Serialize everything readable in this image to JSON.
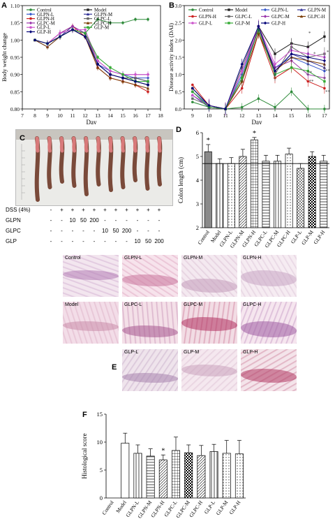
{
  "panels": {
    "A": "A",
    "B": "B",
    "C": "C",
    "D": "D",
    "E": "E",
    "F": "F"
  },
  "colors": {
    "Control": "#2e8b3a",
    "Model": "#222222",
    "GLPN-L": "#3355cc",
    "GLPN-M": "#333399",
    "GLPN-H": "#cc2222",
    "GLPC-L": "#666666",
    "GLPC-M": "#9933aa",
    "GLPC-H": "#7a3b00",
    "GLP-L": "#cc55cc",
    "GLP-M": "#33aa33",
    "GLP-H": "#000077"
  },
  "chart_data": [
    {
      "id": "A",
      "type": "line",
      "xlabel": "Day",
      "ylabel": "Body weight change",
      "xlim": [
        7,
        18
      ],
      "ylim": [
        0.8,
        1.1
      ],
      "xticks": [
        "7",
        "8",
        "9",
        "10",
        "11",
        "12",
        "13",
        "14",
        "15",
        "16",
        "17",
        "18"
      ],
      "yticks": [
        "0.80",
        "0.85",
        "0.90",
        "0.95",
        "1.00",
        "1.05",
        "1.10"
      ],
      "x": [
        8,
        9,
        10,
        11,
        12,
        13,
        14,
        15,
        16,
        17
      ],
      "legend": [
        "Control",
        "Model",
        "GLPN-L",
        "GLPN-M",
        "GLPN-H",
        "GLPC-L",
        "GLPC-M",
        "GLPC-H",
        "GLP-L",
        "GLP-M",
        "GLP-H"
      ],
      "series": [
        {
          "name": "Control",
          "values": [
            1.0,
            0.99,
            1.01,
            1.03,
            1.02,
            1.06,
            1.05,
            1.05,
            1.06,
            1.06
          ]
        },
        {
          "name": "Model",
          "values": [
            1.0,
            0.99,
            1.01,
            1.03,
            1.01,
            0.93,
            0.9,
            0.89,
            0.88,
            0.87
          ]
        },
        {
          "name": "GLPN-L",
          "values": [
            1.0,
            0.99,
            1.02,
            1.03,
            1.02,
            0.93,
            0.91,
            0.9,
            0.89,
            0.89
          ]
        },
        {
          "name": "GLPN-M",
          "values": [
            1.0,
            0.98,
            1.01,
            1.04,
            1.02,
            0.93,
            0.9,
            0.89,
            0.89,
            0.88
          ]
        },
        {
          "name": "GLPN-H",
          "values": [
            1.0,
            0.99,
            1.02,
            1.04,
            1.01,
            0.92,
            0.89,
            0.88,
            0.87,
            0.85
          ]
        },
        {
          "name": "GLPC-L",
          "values": [
            1.0,
            0.99,
            1.01,
            1.03,
            1.02,
            0.93,
            0.9,
            0.89,
            0.89,
            0.88
          ]
        },
        {
          "name": "GLPC-M",
          "values": [
            1.0,
            0.99,
            1.02,
            1.04,
            1.02,
            0.94,
            0.91,
            0.9,
            0.9,
            0.9
          ]
        },
        {
          "name": "GLPC-H",
          "values": [
            1.0,
            0.98,
            1.01,
            1.03,
            1.01,
            0.92,
            0.89,
            0.88,
            0.87,
            0.86
          ]
        },
        {
          "name": "GLP-L",
          "values": [
            1.0,
            0.99,
            1.02,
            1.03,
            1.03,
            0.94,
            0.91,
            0.9,
            0.9,
            0.9
          ]
        },
        {
          "name": "GLP-M",
          "values": [
            1.0,
            0.99,
            1.01,
            1.03,
            1.02,
            0.95,
            0.92,
            0.9,
            0.88,
            0.88
          ]
        },
        {
          "name": "GLP-H",
          "values": [
            1.0,
            0.99,
            1.01,
            1.03,
            1.01,
            0.93,
            0.9,
            0.89,
            0.88,
            0.87
          ]
        }
      ]
    },
    {
      "id": "B",
      "type": "line",
      "xlabel": "Day",
      "ylabel": "Disease activity index (DAI)",
      "xlim": [
        8.5,
        17.3
      ],
      "ylim": [
        0,
        3.0
      ],
      "xticks": [
        "9",
        "10",
        "11",
        "12",
        "13",
        "14",
        "15",
        "16",
        "17"
      ],
      "yticks": [
        "0.0",
        "0.5",
        "1.0",
        "1.5",
        "2.0",
        "2.5",
        "3.0"
      ],
      "x": [
        9,
        10,
        11,
        12,
        13,
        14,
        15,
        16,
        17
      ],
      "legend": [
        "Control",
        "Model",
        "GLPN-L",
        "GLPN-M",
        "GLPN-H",
        "GLPC-L",
        "GLPC-M",
        "GLPC-H",
        "GLP-L",
        "GLP-M",
        "GLP-H"
      ],
      "annotations": [
        "*",
        "*",
        "**",
        "**",
        "*",
        "**",
        "**"
      ],
      "series": [
        {
          "name": "Control",
          "values": [
            0.2,
            0.05,
            0.0,
            0.05,
            0.3,
            0.05,
            0.5,
            0.0,
            0.0
          ]
        },
        {
          "name": "Model",
          "values": [
            0.6,
            0.1,
            0.0,
            0.8,
            2.4,
            1.6,
            1.9,
            1.8,
            2.1
          ]
        },
        {
          "name": "GLPN-L",
          "values": [
            0.5,
            0.1,
            0.0,
            1.0,
            2.3,
            1.2,
            1.5,
            1.3,
            1.1
          ]
        },
        {
          "name": "GLPN-M",
          "values": [
            0.4,
            0.05,
            0.0,
            0.9,
            2.3,
            1.1,
            1.6,
            1.4,
            1.2
          ]
        },
        {
          "name": "GLPN-H",
          "values": [
            0.7,
            0.1,
            0.0,
            0.6,
            2.2,
            0.9,
            1.2,
            0.8,
            0.6
          ]
        },
        {
          "name": "GLPC-L",
          "values": [
            0.3,
            0.1,
            0.0,
            1.2,
            2.4,
            1.0,
            1.8,
            1.5,
            1.6
          ]
        },
        {
          "name": "GLPC-M",
          "values": [
            0.5,
            0.05,
            0.0,
            1.1,
            2.3,
            1.2,
            1.4,
            1.0,
            0.9
          ]
        },
        {
          "name": "GLPC-H",
          "values": [
            0.6,
            0.1,
            0.0,
            0.8,
            2.2,
            1.1,
            1.5,
            1.4,
            1.3
          ]
        },
        {
          "name": "GLP-L",
          "values": [
            0.4,
            0.1,
            0.0,
            1.1,
            2.4,
            1.3,
            1.7,
            1.6,
            1.5
          ]
        },
        {
          "name": "GLP-M",
          "values": [
            0.5,
            0.05,
            0.0,
            0.9,
            2.3,
            1.0,
            1.2,
            1.1,
            0.8
          ]
        },
        {
          "name": "GLP-H",
          "values": [
            0.6,
            0.1,
            0.0,
            1.3,
            2.4,
            1.1,
            1.6,
            1.5,
            1.4
          ]
        }
      ]
    },
    {
      "id": "D",
      "type": "bar",
      "ylabel": "Colon length (cm)",
      "ylim": [
        2,
        6
      ],
      "yticks": [
        "2",
        "3",
        "4",
        "5",
        "6"
      ],
      "categories": [
        "Control",
        "Model",
        "GLPN-L",
        "GLPN-M",
        "GLPN-H",
        "GLPC-L",
        "GLPC-M",
        "GLPC-H",
        "GLP-L",
        "GLP-M",
        "GLP-H"
      ],
      "values": [
        5.2,
        4.7,
        4.7,
        5.0,
        5.7,
        4.8,
        4.8,
        5.1,
        4.5,
        5.0,
        4.8
      ],
      "errors": [
        0.3,
        0.2,
        0.25,
        0.3,
        0.1,
        0.25,
        0.25,
        0.25,
        0.2,
        0.2,
        0.25
      ],
      "annotations": [
        "*",
        "",
        "",
        "",
        "*",
        "",
        "",
        "",
        "",
        "",
        ""
      ]
    },
    {
      "id": "F",
      "type": "bar",
      "ylabel": "Histological score",
      "ylim": [
        0,
        15
      ],
      "yticks": [
        "0",
        "5",
        "10",
        "15"
      ],
      "categories": [
        "Control",
        "Model",
        "GLPN-L",
        "GLPN-M",
        "GLPN-H",
        "GLPC-L",
        "GLPC-M",
        "GLPC-H",
        "GLP-L",
        "GLP-M",
        "GLP-H"
      ],
      "values": [
        0,
        9.8,
        8.0,
        7.5,
        6.8,
        8.5,
        8.1,
        7.6,
        8.3,
        8.0,
        7.9
      ],
      "errors": [
        0,
        1.8,
        1.5,
        1.3,
        0.9,
        2.4,
        1.4,
        1.8,
        1.3,
        2.3,
        2.4
      ],
      "annotations": [
        "",
        "",
        "",
        "",
        "*",
        "",
        "",
        "",
        "",
        "",
        ""
      ]
    }
  ],
  "photo": {
    "rows": [
      {
        "label": "DSS (4%)",
        "marks": [
          "-",
          "+",
          "+",
          "+",
          "+",
          "+",
          "+",
          "+",
          "+",
          "+",
          "+"
        ]
      },
      {
        "label": "GLPN",
        "marks": [
          "-",
          "-",
          "10",
          "50",
          "200",
          "-",
          "-",
          "-",
          "-",
          "-",
          "-"
        ]
      },
      {
        "label": "GLPC",
        "marks": [
          "-",
          "-",
          "-",
          "-",
          "-",
          "10",
          "50",
          "200",
          "-",
          "-",
          "-"
        ]
      },
      {
        "label": "GLP",
        "marks": [
          "-",
          "-",
          "-",
          "-",
          "-",
          "-",
          "-",
          "-",
          "10",
          "50",
          "200"
        ]
      }
    ]
  },
  "histology": {
    "tiles": [
      "Control",
      "GLPN-L",
      "GLPN-M",
      "GLPN-H",
      "Model",
      "GLPC-L",
      "GLPC-M",
      "GLPC-H",
      "GLP-L",
      "GLP-M",
      "GLP-H"
    ]
  }
}
